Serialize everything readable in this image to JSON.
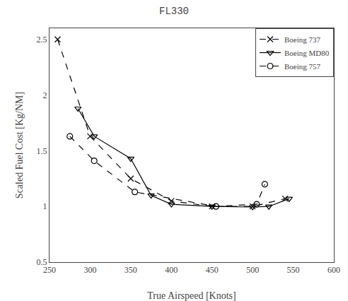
{
  "chart_data": {
    "type": "line",
    "title": "FL330",
    "x_label": "True Airspeed [Knots]",
    "y_label": "Scaled Fuel Cost [Kg/NM]",
    "xlim": [
      250,
      600
    ],
    "ylim": [
      0.5,
      2.6
    ],
    "xticks": [
      250,
      300,
      350,
      400,
      450,
      500,
      550,
      600
    ],
    "yticks": [
      0.5,
      1,
      1.5,
      2,
      2.5
    ],
    "grid": false,
    "legend": "upper right",
    "series": [
      {
        "name": "Boeing 737",
        "color": "#000000",
        "marker": "x",
        "line_style": "dashed",
        "x": [
          260,
          300,
          350,
          400,
          450,
          500,
          540
        ],
        "values": [
          2.5,
          1.63,
          1.25,
          1.05,
          1.0,
          1.0,
          1.07
        ]
      },
      {
        "name": "Boeing MD80",
        "color": "#000000",
        "marker": "triangle-down-open",
        "line_style": "solid",
        "x": [
          285,
          305,
          350,
          375,
          400,
          450,
          500,
          520,
          545
        ],
        "values": [
          1.88,
          1.63,
          1.43,
          1.1,
          1.02,
          1.0,
          0.995,
          1.0,
          1.07
        ]
      },
      {
        "name": "Boeing 757",
        "color": "#000000",
        "marker": "circle-open",
        "line_style": "dashed",
        "x": [
          275,
          305,
          355,
          455,
          505,
          515
        ],
        "values": [
          1.63,
          1.41,
          1.13,
          1.0,
          1.02,
          1.2
        ]
      }
    ]
  }
}
